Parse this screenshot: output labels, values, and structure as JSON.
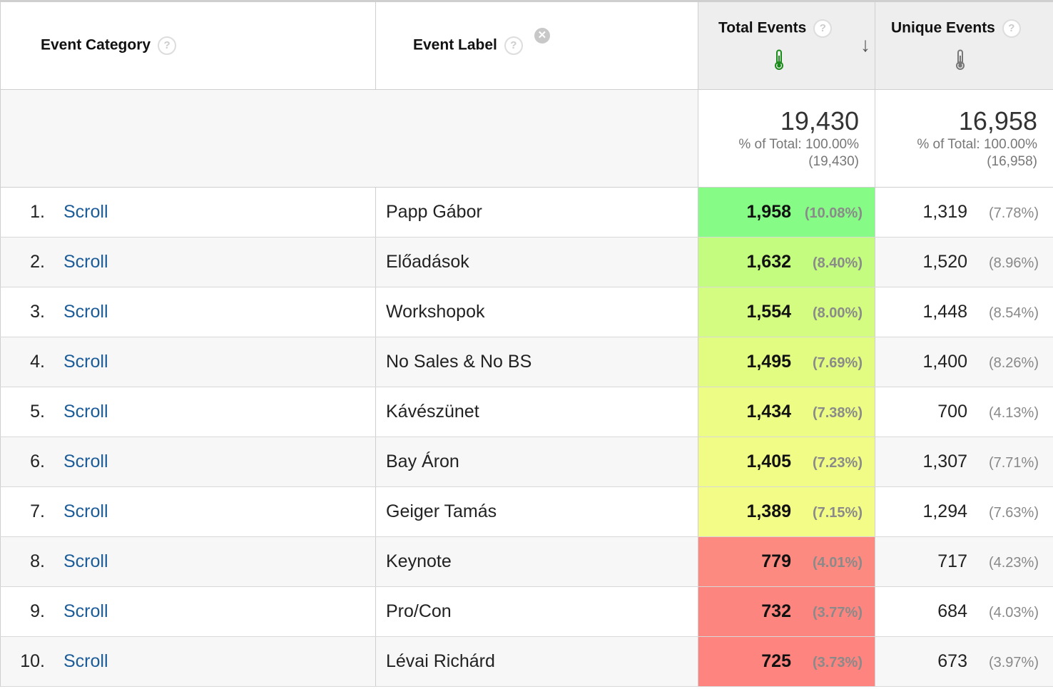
{
  "header": {
    "event_category": "Event Category",
    "event_label": "Event Label",
    "total_events": "Total Events",
    "unique_events": "Unique Events",
    "help_glyph": "?",
    "remove_glyph": "✕",
    "sort_glyph": "↓"
  },
  "totals": {
    "total_events": {
      "value": "19,430",
      "pct": "% of Total: 100.00%",
      "abs": "(19,430)"
    },
    "unique_events": {
      "value": "16,958",
      "pct": "% of Total: 100.00%",
      "abs": "(16,958)"
    }
  },
  "colors": {
    "link": "#1b5c99",
    "thermo_active": "#1a8a1a",
    "thermo_inactive": "#777777"
  },
  "rows": [
    {
      "index": "1.",
      "category": "Scroll",
      "label": "Papp Gábor",
      "total": "1,958",
      "total_pct": "(10.08%)",
      "unique": "1,319",
      "unique_pct": "(7.78%)",
      "heat": "#86fc86"
    },
    {
      "index": "2.",
      "category": "Scroll",
      "label": "Előadások",
      "total": "1,632",
      "total_pct": "(8.40%)",
      "unique": "1,520",
      "unique_pct": "(8.96%)",
      "heat": "#c4fc80"
    },
    {
      "index": "3.",
      "category": "Scroll",
      "label": "Workshopok",
      "total": "1,554",
      "total_pct": "(8.00%)",
      "unique": "1,448",
      "unique_pct": "(8.54%)",
      "heat": "#d3fc80"
    },
    {
      "index": "4.",
      "category": "Scroll",
      "label": "No Sales & No BS",
      "total": "1,495",
      "total_pct": "(7.69%)",
      "unique": "1,400",
      "unique_pct": "(8.26%)",
      "heat": "#e2fc82"
    },
    {
      "index": "5.",
      "category": "Scroll",
      "label": "Kávészünet",
      "total": "1,434",
      "total_pct": "(7.38%)",
      "unique": "700",
      "unique_pct": "(4.13%)",
      "heat": "#ecfc85"
    },
    {
      "index": "6.",
      "category": "Scroll",
      "label": "Bay Áron",
      "total": "1,405",
      "total_pct": "(7.23%)",
      "unique": "1,307",
      "unique_pct": "(7.71%)",
      "heat": "#f1fc87"
    },
    {
      "index": "7.",
      "category": "Scroll",
      "label": "Geiger Tamás",
      "total": "1,389",
      "total_pct": "(7.15%)",
      "unique": "1,294",
      "unique_pct": "(7.63%)",
      "heat": "#f4fc88"
    },
    {
      "index": "8.",
      "category": "Scroll",
      "label": "Keynote",
      "total": "779",
      "total_pct": "(4.01%)",
      "unique": "717",
      "unique_pct": "(4.23%)",
      "heat": "#fd8a80"
    },
    {
      "index": "9.",
      "category": "Scroll",
      "label": "Pro/Con",
      "total": "732",
      "total_pct": "(3.77%)",
      "unique": "684",
      "unique_pct": "(4.03%)",
      "heat": "#fd857f"
    },
    {
      "index": "10.",
      "category": "Scroll",
      "label": "Lévai Richárd",
      "total": "725",
      "total_pct": "(3.73%)",
      "unique": "673",
      "unique_pct": "(3.97%)",
      "heat": "#fd847f"
    }
  ]
}
